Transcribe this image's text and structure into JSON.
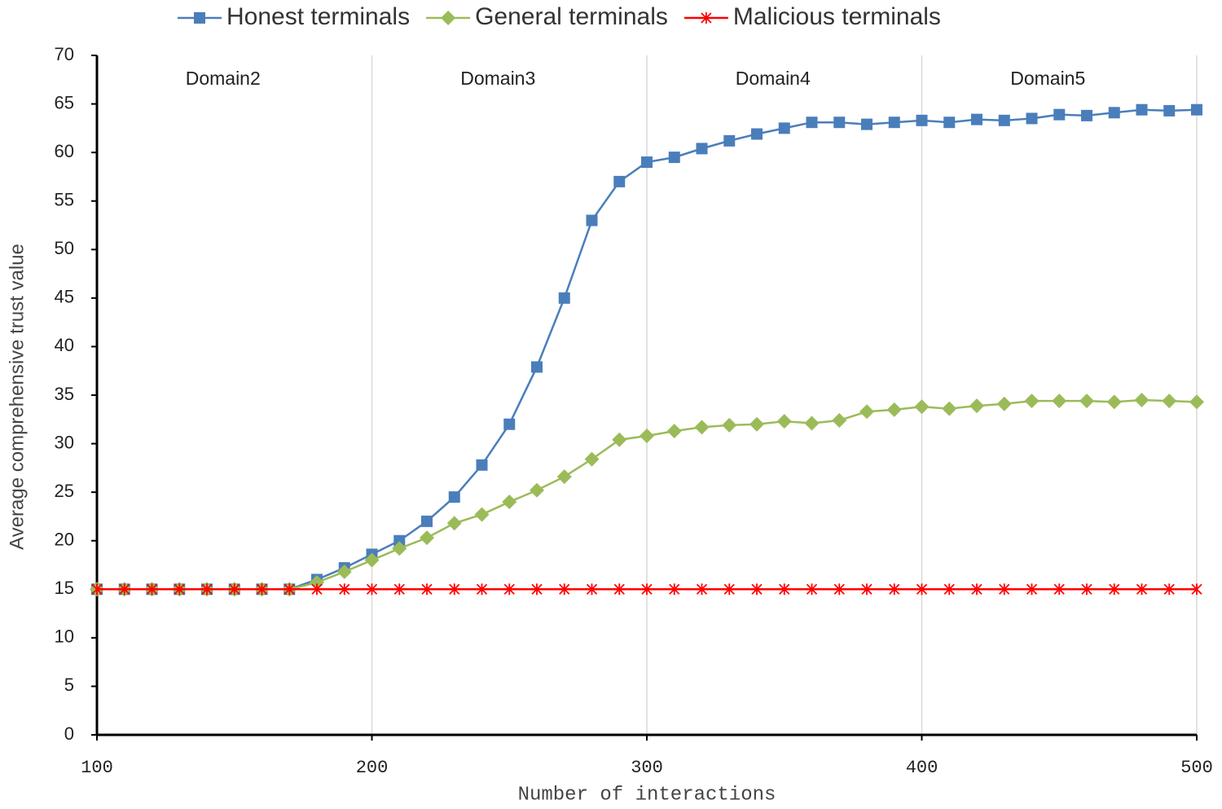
{
  "chart_data": {
    "type": "line",
    "x_label": "Number of interactions",
    "y_label": "Average comprehensive trust value",
    "annotations": [
      "Domain2",
      "Domain3",
      "Domain4",
      "Domain5"
    ],
    "x": [
      100,
      110,
      120,
      130,
      140,
      150,
      160,
      170,
      180,
      190,
      200,
      210,
      220,
      230,
      240,
      250,
      260,
      270,
      280,
      290,
      300,
      310,
      320,
      330,
      340,
      350,
      360,
      370,
      380,
      390,
      400,
      410,
      420,
      430,
      440,
      450,
      460,
      470,
      480,
      490,
      500
    ],
    "series": [
      {
        "name": "Honest terminals",
        "color": "#4a7ebb",
        "marker": "square",
        "values": [
          15,
          15,
          15,
          15,
          15,
          15,
          15,
          15,
          16,
          17.2,
          18.6,
          20,
          22,
          24.5,
          27.8,
          32,
          37.9,
          45,
          53,
          57,
          59,
          59.5,
          60.4,
          61.2,
          61.9,
          62.5,
          63.1,
          63.1,
          62.9,
          63.1,
          63.3,
          63.1,
          63.4,
          63.3,
          63.5,
          63.9,
          63.8,
          64.1,
          64.4,
          64.3,
          64.4
        ]
      },
      {
        "name": "General terminals",
        "color": "#9bbb59",
        "marker": "diamond",
        "values": [
          15,
          15,
          15,
          15,
          15,
          15,
          15,
          15,
          15.7,
          16.8,
          18,
          19.2,
          20.3,
          21.8,
          22.7,
          24,
          25.2,
          26.6,
          28.4,
          30.4,
          30.8,
          31.3,
          31.7,
          31.9,
          32,
          32.3,
          32.1,
          32.4,
          33.3,
          33.5,
          33.8,
          33.6,
          33.9,
          34.1,
          34.4,
          34.4,
          34.4,
          34.3,
          34.5,
          34.4,
          34.3
        ]
      },
      {
        "name": "Malicious terminals",
        "color": "#ff0000",
        "marker": "star",
        "values": [
          15,
          15,
          15,
          15,
          15,
          15,
          15,
          15,
          15,
          15,
          15,
          15,
          15,
          15,
          15,
          15,
          15,
          15,
          15,
          15,
          15,
          15,
          15,
          15,
          15,
          15,
          15,
          15,
          15,
          15,
          15,
          15,
          15,
          15,
          15,
          15,
          15,
          15,
          15,
          15,
          15
        ]
      }
    ],
    "xlim": [
      100,
      500
    ],
    "xticks": [
      100,
      200,
      300,
      400,
      500
    ],
    "ylim": [
      0,
      70
    ],
    "yticks": [
      0,
      5,
      10,
      15,
      20,
      25,
      30,
      35,
      40,
      45,
      50,
      55,
      60,
      65,
      70
    ],
    "grid": "x",
    "legend": "top"
  }
}
